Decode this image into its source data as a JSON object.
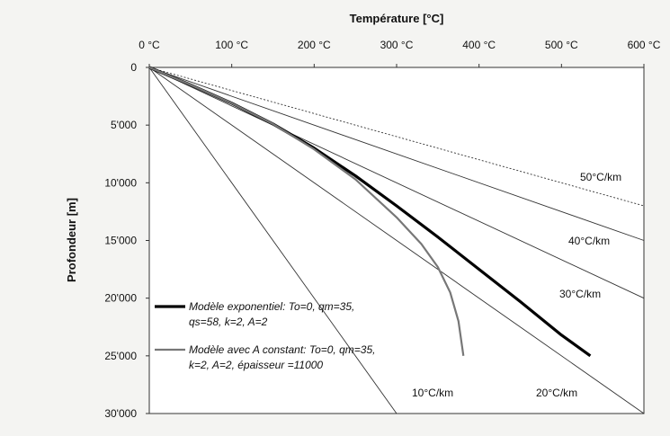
{
  "chart_data": {
    "type": "line",
    "title": "",
    "xlabel": "Température [°C]",
    "ylabel": "Profondeur [m]",
    "xlim": [
      0,
      600
    ],
    "ylim": [
      0,
      30000
    ],
    "y_inverted": true,
    "x_axis_position": "top",
    "x_ticks": [
      0,
      100,
      200,
      300,
      400,
      500,
      600
    ],
    "x_tick_labels": [
      "0 °C",
      "100 °C",
      "200 °C",
      "300 °C",
      "400 °C",
      "500 °C",
      "600 °C"
    ],
    "y_ticks": [
      0,
      5000,
      10000,
      15000,
      20000,
      25000,
      30000
    ],
    "y_tick_labels": [
      "0",
      "5'000",
      "10'000",
      "15'000",
      "20'000",
      "25'000",
      "30'000"
    ],
    "grid": false,
    "legend_position": "bottom-left",
    "gradients": [
      {
        "label": "10°C/km",
        "x": [
          0,
          300
        ],
        "y": [
          0,
          30000
        ],
        "style": "thin-solid"
      },
      {
        "label": "20°C/km",
        "x": [
          0,
          600
        ],
        "y": [
          0,
          30000
        ],
        "style": "thin-solid"
      },
      {
        "label": "30°C/km",
        "x": [
          0,
          600
        ],
        "y": [
          0,
          20000
        ],
        "style": "thin-solid"
      },
      {
        "label": "40°C/km",
        "x": [
          0,
          600
        ],
        "y": [
          0,
          15000
        ],
        "style": "thin-solid"
      },
      {
        "label": "50°C/km",
        "x": [
          0,
          600
        ],
        "y": [
          0,
          12000
        ],
        "style": "dotted"
      }
    ],
    "series": [
      {
        "name": "Modèle exponentiel: To=0, qm=35, qs=58, k=2, A=2",
        "legend_lines": [
          "Modèle exponentiel: To=0, qm=35,",
          "qs=58, k=2, A=2"
        ],
        "color": "#000000",
        "x": [
          0,
          50,
          100,
          150,
          200,
          250,
          300,
          350,
          400,
          450,
          500,
          535
        ],
        "y": [
          0,
          1500,
          3100,
          4900,
          7000,
          9400,
          12000,
          14700,
          17500,
          20300,
          23200,
          25000
        ]
      },
      {
        "name": "Modèle avec A constant: To=0, qm=35, k=2, A=2, épaisseur =11000",
        "legend_lines": [
          "Modèle avec A constant: To=0, qm=35,",
          "k=2, A=2, épaisseur =11000"
        ],
        "color": "#777777",
        "x": [
          0,
          50,
          100,
          150,
          200,
          250,
          300,
          330,
          350,
          365,
          375,
          381
        ],
        "y": [
          0,
          1500,
          3100,
          4900,
          7100,
          9700,
          13000,
          15300,
          17300,
          19500,
          22000,
          25000
        ]
      }
    ]
  }
}
